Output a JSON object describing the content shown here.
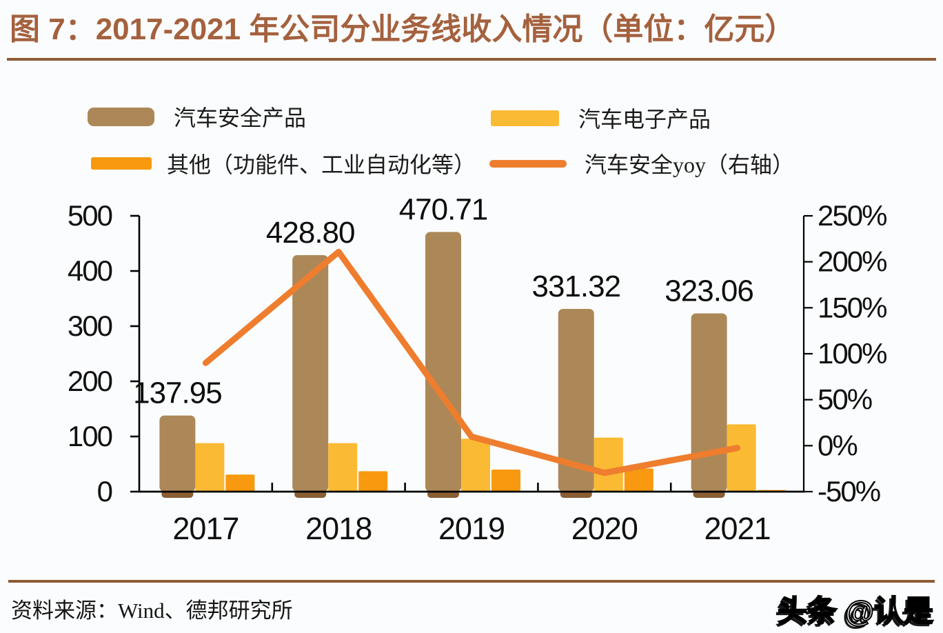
{
  "title": {
    "text": "图 7：2017-2021 年公司分业务线收入情况（单位：亿元）"
  },
  "legend": [
    {
      "label": "汽车安全产品",
      "type": "bar",
      "color": "#ac8858"
    },
    {
      "label": "汽车电子产品",
      "type": "bar",
      "color": "#fbba33"
    },
    {
      "label": "其他（功能件、工业自动化等）",
      "type": "bar",
      "color": "#f8990f"
    },
    {
      "label": "汽车安全yoy（右轴）",
      "type": "line",
      "color": "#ee7d2e"
    }
  ],
  "chart_data": {
    "type": "bar+line",
    "categories": [
      "2017",
      "2018",
      "2019",
      "2020",
      "2021"
    ],
    "series": [
      {
        "name": "汽车安全产品",
        "type": "bar",
        "axis": "left",
        "color": "#ac8858",
        "base_color": "#8a5e33",
        "values": [
          137.95,
          428.8,
          470.71,
          331.32,
          323.06
        ],
        "labels": [
          "137.95",
          "428.80",
          "470.71",
          "331.32",
          "323.06"
        ]
      },
      {
        "name": "汽车电子产品",
        "type": "bar",
        "axis": "left",
        "color": "#fbba33",
        "values": [
          88,
          88,
          96,
          98,
          122
        ]
      },
      {
        "name": "其他（功能件、工业自动化等）",
        "type": "bar",
        "axis": "left",
        "color": "#f8990f",
        "values": [
          31,
          37,
          40,
          42,
          3
        ]
      },
      {
        "name": "汽车安全yoy（右轴）",
        "type": "line",
        "axis": "right",
        "color": "#ee7d2e",
        "values": [
          90,
          210.8,
          9.8,
          -29.6,
          -2.5
        ]
      }
    ],
    "left_axis": {
      "min": 0,
      "max": 500,
      "tick_values": [
        0,
        100,
        200,
        300,
        400,
        500
      ],
      "tick_labels": [
        "0",
        "100",
        "200",
        "300",
        "400",
        "500"
      ]
    },
    "right_axis": {
      "min": -50,
      "max": 250,
      "tick_values": [
        -50,
        0,
        50,
        100,
        150,
        200,
        250
      ],
      "tick_labels": [
        "-50%",
        "0%",
        "50%",
        "100%",
        "150%",
        "200%",
        "250%"
      ]
    },
    "grid": false,
    "legend_position": "top"
  },
  "source": {
    "text": "资料来源：Wind、德邦研究所"
  },
  "watermark": {
    "text": "头条 @认是"
  }
}
